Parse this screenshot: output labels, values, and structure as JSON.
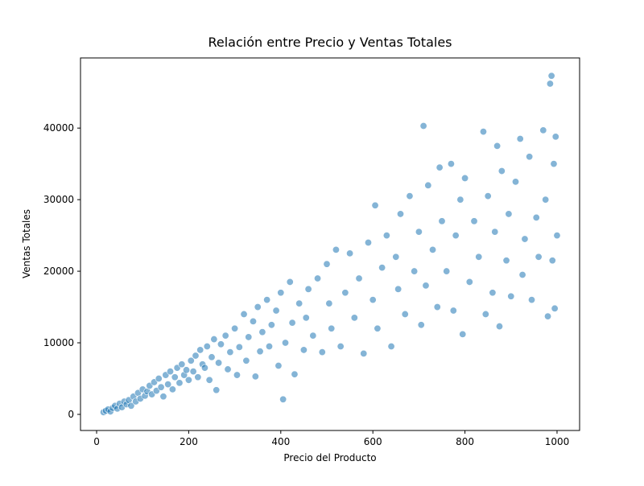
{
  "chart_data": {
    "type": "scatter",
    "title": "Relación entre Precio y Ventas Totales",
    "x_label": "Precio del Producto",
    "y_label": "Ventas Totales",
    "color": "#1f77b4",
    "xlim": [
      -35,
      1049
    ],
    "ylim": [
      -2250,
      49800
    ],
    "xticks": [
      0,
      200,
      400,
      600,
      800,
      1000
    ],
    "yticks": [
      0,
      10000,
      20000,
      30000,
      40000
    ],
    "x": [
      15,
      20,
      25,
      30,
      35,
      40,
      45,
      50,
      55,
      60,
      65,
      70,
      75,
      80,
      85,
      90,
      95,
      100,
      105,
      110,
      115,
      120,
      125,
      130,
      135,
      140,
      145,
      150,
      155,
      160,
      165,
      170,
      175,
      180,
      185,
      190,
      195,
      200,
      205,
      210,
      215,
      220,
      225,
      230,
      235,
      240,
      245,
      250,
      255,
      260,
      265,
      270,
      280,
      285,
      290,
      300,
      305,
      310,
      320,
      325,
      330,
      340,
      345,
      350,
      355,
      360,
      370,
      375,
      380,
      390,
      395,
      400,
      405,
      410,
      420,
      425,
      430,
      440,
      450,
      455,
      460,
      470,
      480,
      490,
      500,
      505,
      510,
      520,
      530,
      540,
      550,
      560,
      570,
      580,
      590,
      600,
      605,
      610,
      620,
      630,
      640,
      650,
      655,
      660,
      670,
      680,
      690,
      700,
      705,
      710,
      715,
      720,
      730,
      740,
      745,
      750,
      760,
      770,
      775,
      780,
      790,
      795,
      800,
      810,
      820,
      830,
      840,
      845,
      850,
      860,
      865,
      870,
      875,
      880,
      890,
      895,
      900,
      910,
      920,
      925,
      930,
      940,
      945,
      955,
      960,
      970,
      975,
      980,
      985,
      988,
      990,
      993,
      995,
      997,
      1000
    ],
    "values": [
      300,
      500,
      700,
      400,
      900,
      1200,
      800,
      1500,
      1000,
      1800,
      1400,
      2000,
      1200,
      2500,
      1800,
      3000,
      2200,
      3500,
      2600,
      3200,
      4000,
      2800,
      4500,
      3300,
      5000,
      3800,
      2500,
      5500,
      4200,
      6000,
      3500,
      5200,
      6500,
      4400,
      7000,
      5500,
      6200,
      4800,
      7500,
      6000,
      8200,
      5200,
      9000,
      7000,
      6500,
      9500,
      4800,
      8000,
      10500,
      3400,
      7200,
      9800,
      11000,
      6300,
      8700,
      12000,
      5500,
      9400,
      14000,
      7500,
      10800,
      13000,
      5300,
      15000,
      8800,
      11500,
      16000,
      9500,
      12500,
      14500,
      6800,
      17000,
      2100,
      10000,
      18500,
      12800,
      5600,
      15500,
      9000,
      13500,
      17500,
      11000,
      19000,
      8700,
      21000,
      15500,
      12000,
      23000,
      9500,
      17000,
      22500,
      13500,
      19000,
      8500,
      24000,
      16000,
      29200,
      12000,
      20500,
      25000,
      9500,
      22000,
      17500,
      28000,
      14000,
      30500,
      20000,
      25500,
      12500,
      40300,
      18000,
      32000,
      23000,
      15000,
      34500,
      27000,
      20000,
      35000,
      14500,
      25000,
      30000,
      11200,
      33000,
      18500,
      27000,
      22000,
      39500,
      14000,
      30500,
      17000,
      25500,
      37500,
      12300,
      34000,
      21500,
      28000,
      16500,
      32500,
      38500,
      19500,
      24500,
      36000,
      16000,
      27500,
      22000,
      39700,
      30000,
      13700,
      46200,
      47300,
      21500,
      35000,
      14800,
      38800,
      25000
    ]
  }
}
